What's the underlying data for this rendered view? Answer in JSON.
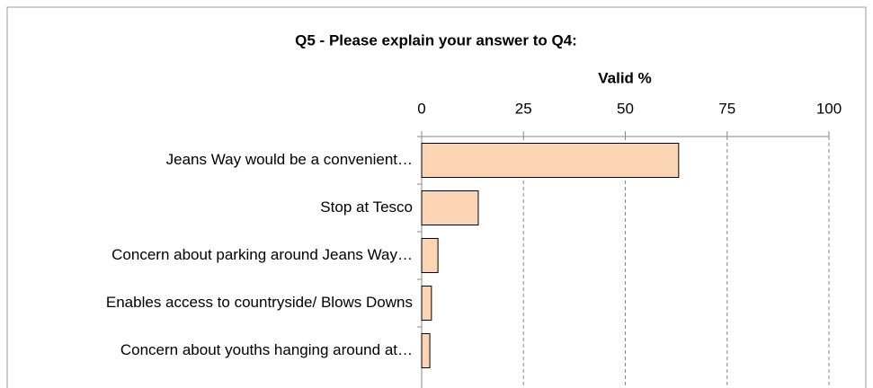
{
  "chart_data": {
    "type": "bar",
    "orientation": "horizontal",
    "title": "Q5 - Please explain  your answer to Q4:",
    "x_label": "Valid %",
    "categories": [
      "Jeans Way would be a convenient…",
      "Stop at Tesco",
      "Concern about parking around Jeans Way…",
      "Enables access to countryside/ Blows Downs",
      "Concern about youths hanging around at…"
    ],
    "values": [
      63.1,
      13.9,
      4.0,
      2.4,
      2.0
    ],
    "color": "#fcd5b5",
    "xlim": [
      0,
      100
    ],
    "xticks": [
      0,
      25,
      50,
      75,
      100
    ],
    "grid": true
  }
}
